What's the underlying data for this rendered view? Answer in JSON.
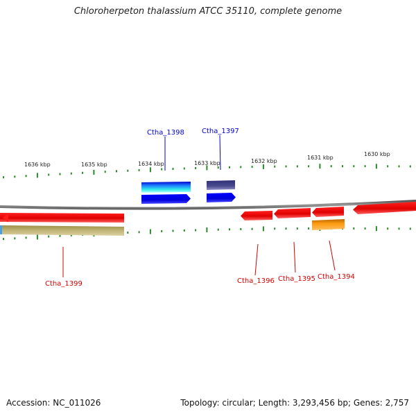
{
  "title": "Chloroherpeton thalassium ATCC 35110, complete genome",
  "footer": {
    "accession": "Accession: NC_011026",
    "summary": "Topology: circular; Length: 3,293,456 bp; Genes: 2,757"
  },
  "ticks": [
    {
      "label": "1636 kbp"
    },
    {
      "label": "1635 kbp"
    },
    {
      "label": "1634 kbp"
    },
    {
      "label": "1633 kbp"
    },
    {
      "label": "1632 kbp"
    },
    {
      "label": "1631 kbp"
    },
    {
      "label": "1630 kbp"
    }
  ],
  "genes": [
    {
      "id": "Ctha_1398",
      "strand": "+",
      "color": "#0000cc"
    },
    {
      "id": "Ctha_1397",
      "strand": "+",
      "color": "#0000cc"
    },
    {
      "id": "Ctha_1399",
      "strand": "-",
      "color": "#d40000"
    },
    {
      "id": "Ctha_1396",
      "strand": "-",
      "color": "#d40000"
    },
    {
      "id": "Ctha_1395",
      "strand": "-",
      "color": "#d40000"
    },
    {
      "id": "Ctha_1394",
      "strand": "-",
      "color": "#d40000"
    }
  ],
  "colors": {
    "backbone": "#777777",
    "tick": "#2a8a2a",
    "forward_gene": "#0000ee",
    "reverse_gene": "#ee0000",
    "forward_label": "#0000cc",
    "reverse_label": "#d40000",
    "feature_tan": "#b5a86a",
    "feature_orange": "#f28c00",
    "feature_cyan": "#22dddd",
    "feature_slate": "#4a4a8a"
  }
}
